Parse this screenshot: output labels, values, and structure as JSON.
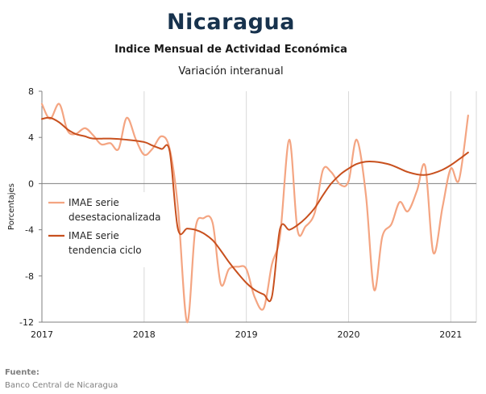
{
  "header": {
    "title": "Nicaragua",
    "subtitle": "Indice Mensual de  Actividad Económica",
    "subtitle2": "Variación interanual"
  },
  "footer": {
    "source_label": "Fuente:",
    "source_text": "Banco Central de Nicaragua"
  },
  "chart_data": {
    "type": "line",
    "title": "Nicaragua",
    "subtitle": "Indice Mensual de  Actividad Económica — Variación interanual",
    "xlabel": "",
    "ylabel": "Porcentajes",
    "x_ticks": [
      "2017",
      "2018",
      "2019",
      "2020",
      "2021"
    ],
    "y_ticks": [
      "8",
      "4",
      "0",
      "-4",
      "-8",
      "-12"
    ],
    "ylim": [
      -12,
      8
    ],
    "xlim": [
      2017.0,
      2021.25
    ],
    "grid": "vertical gridlines at years; horizontal zero line",
    "legend_position": "left-center",
    "series": [
      {
        "name": "IMAE serie desestacionalizada",
        "color": "#f4a582",
        "points": [
          [
            2017.0,
            6.9
          ],
          [
            2017.08,
            5.6
          ],
          [
            2017.17,
            6.9
          ],
          [
            2017.25,
            4.6
          ],
          [
            2017.33,
            4.3
          ],
          [
            2017.42,
            4.8
          ],
          [
            2017.5,
            4.2
          ],
          [
            2017.58,
            3.4
          ],
          [
            2017.67,
            3.5
          ],
          [
            2017.75,
            3.0
          ],
          [
            2017.83,
            5.7
          ],
          [
            2017.92,
            3.8
          ],
          [
            2018.0,
            2.5
          ],
          [
            2018.08,
            3.0
          ],
          [
            2018.17,
            4.1
          ],
          [
            2018.25,
            3.0
          ],
          [
            2018.33,
            -2.0
          ],
          [
            2018.42,
            -12.0
          ],
          [
            2018.5,
            -4.0
          ],
          [
            2018.58,
            -3.0
          ],
          [
            2018.67,
            -3.4
          ],
          [
            2018.75,
            -8.7
          ],
          [
            2018.83,
            -7.4
          ],
          [
            2018.92,
            -7.2
          ],
          [
            2019.0,
            -7.4
          ],
          [
            2019.08,
            -9.8
          ],
          [
            2019.17,
            -10.8
          ],
          [
            2019.25,
            -7.0
          ],
          [
            2019.33,
            -4.5
          ],
          [
            2019.42,
            3.8
          ],
          [
            2019.5,
            -4.0
          ],
          [
            2019.58,
            -3.7
          ],
          [
            2019.67,
            -2.5
          ],
          [
            2019.75,
            1.2
          ],
          [
            2019.83,
            1.0
          ],
          [
            2019.92,
            -0.1
          ],
          [
            2020.0,
            0.2
          ],
          [
            2020.08,
            3.8
          ],
          [
            2020.17,
            -1.0
          ],
          [
            2020.25,
            -9.2
          ],
          [
            2020.33,
            -4.6
          ],
          [
            2020.42,
            -3.5
          ],
          [
            2020.5,
            -1.6
          ],
          [
            2020.58,
            -2.4
          ],
          [
            2020.67,
            -0.6
          ],
          [
            2020.75,
            1.5
          ],
          [
            2020.83,
            -6.0
          ],
          [
            2020.92,
            -2.0
          ],
          [
            2021.0,
            1.3
          ],
          [
            2021.08,
            0.3
          ],
          [
            2021.17,
            5.9
          ]
        ]
      },
      {
        "name": "IMAE serie tendencia ciclo",
        "color": "#c8501e",
        "points": [
          [
            2017.0,
            5.6
          ],
          [
            2017.08,
            5.7
          ],
          [
            2017.17,
            5.3
          ],
          [
            2017.25,
            4.7
          ],
          [
            2017.33,
            4.3
          ],
          [
            2017.42,
            4.1
          ],
          [
            2017.5,
            3.9
          ],
          [
            2017.67,
            3.9
          ],
          [
            2017.83,
            3.8
          ],
          [
            2018.0,
            3.6
          ],
          [
            2018.08,
            3.3
          ],
          [
            2018.17,
            3.0
          ],
          [
            2018.25,
            2.8
          ],
          [
            2018.33,
            -3.9
          ],
          [
            2018.42,
            -3.9
          ],
          [
            2018.5,
            -4.0
          ],
          [
            2018.58,
            -4.3
          ],
          [
            2018.67,
            -4.9
          ],
          [
            2018.75,
            -5.8
          ],
          [
            2018.83,
            -6.8
          ],
          [
            2018.92,
            -7.8
          ],
          [
            2019.0,
            -8.6
          ],
          [
            2019.08,
            -9.2
          ],
          [
            2019.17,
            -9.6
          ],
          [
            2019.25,
            -9.8
          ],
          [
            2019.33,
            -3.9
          ],
          [
            2019.42,
            -4.0
          ],
          [
            2019.5,
            -3.6
          ],
          [
            2019.58,
            -3.0
          ],
          [
            2019.67,
            -2.1
          ],
          [
            2019.75,
            -1.0
          ],
          [
            2019.83,
            0.0
          ],
          [
            2019.92,
            0.8
          ],
          [
            2020.0,
            1.3
          ],
          [
            2020.08,
            1.7
          ],
          [
            2020.17,
            1.9
          ],
          [
            2020.25,
            1.9
          ],
          [
            2020.33,
            1.8
          ],
          [
            2020.42,
            1.6
          ],
          [
            2020.5,
            1.3
          ],
          [
            2020.58,
            1.0
          ],
          [
            2020.67,
            0.8
          ],
          [
            2020.75,
            0.75
          ],
          [
            2020.83,
            0.9
          ],
          [
            2020.92,
            1.2
          ],
          [
            2021.0,
            1.6
          ],
          [
            2021.08,
            2.1
          ],
          [
            2021.17,
            2.7
          ]
        ]
      }
    ]
  }
}
